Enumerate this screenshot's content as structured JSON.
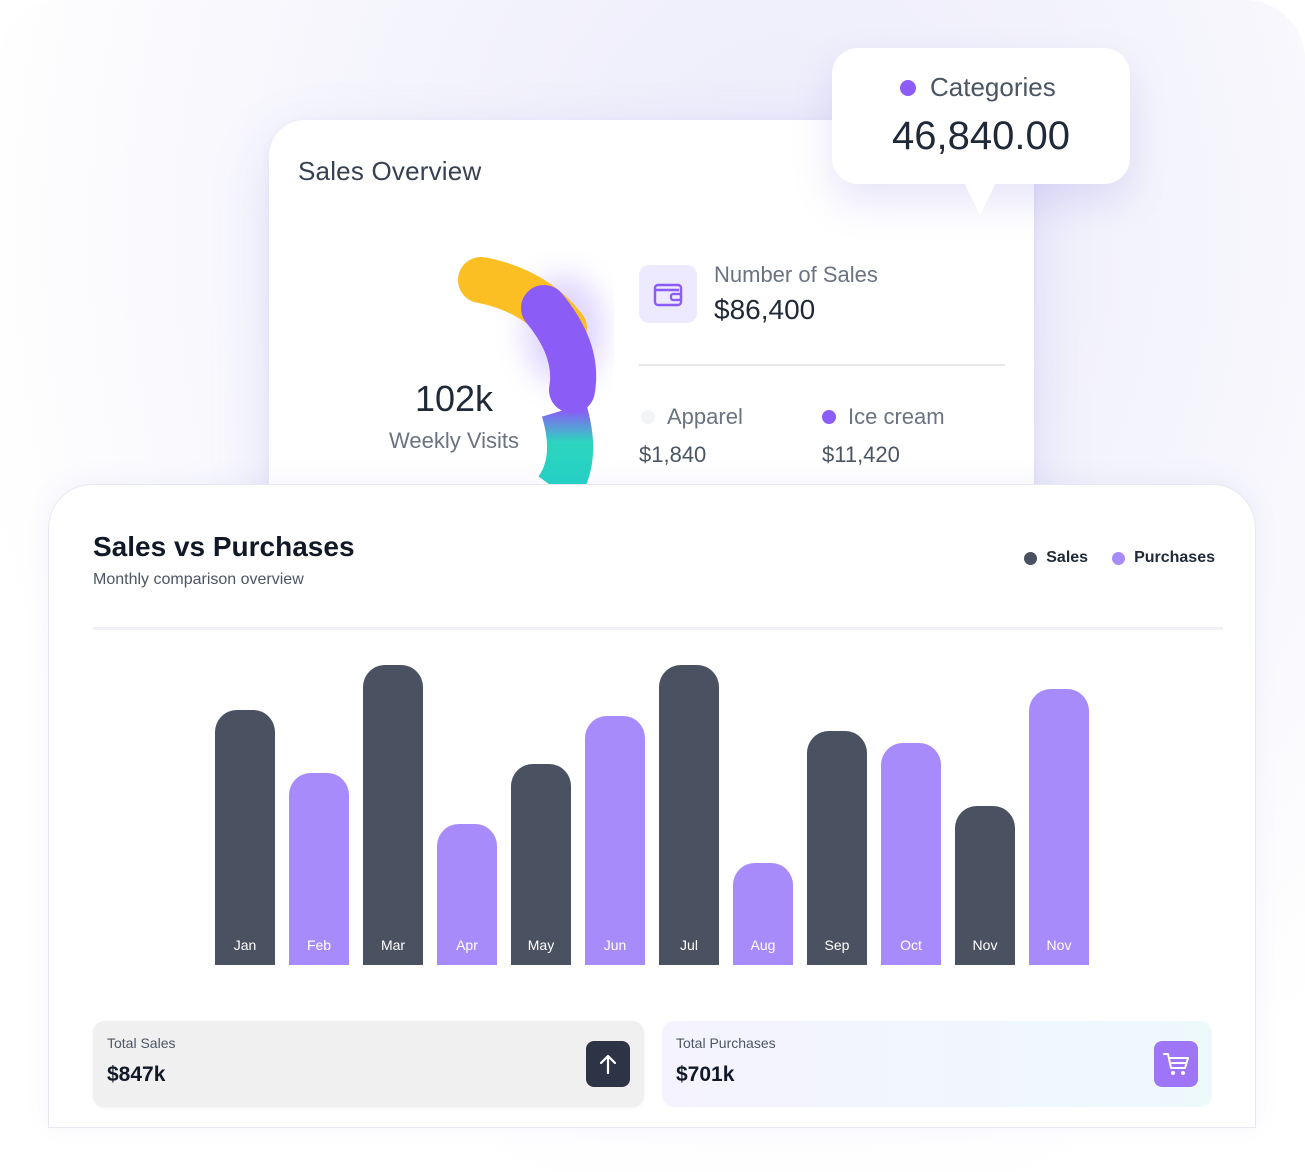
{
  "overview": {
    "title": "Sales Overview",
    "weekly_visits_value": "102k",
    "weekly_visits_label": "Weekly Visits",
    "number_of_sales_label": "Number of Sales",
    "number_of_sales_value": "$86,400",
    "categories": [
      {
        "label": "Apparel",
        "value": "$1,840",
        "color": "#f3f4f6"
      },
      {
        "label": "Ice cream",
        "value": "$11,420",
        "color": "#8b5cf6"
      }
    ],
    "donut_colors": [
      "#fbbf24",
      "#8b5cf6",
      "#2dd4bf"
    ]
  },
  "tooltip": {
    "label": "Categories",
    "value": "46,840.00",
    "dot_color": "#8b5cf6"
  },
  "svp": {
    "title": "Sales vs Purchases",
    "subtitle": "Monthly comparison overview",
    "legend": [
      {
        "label": "Sales",
        "color": "#4a5261"
      },
      {
        "label": "Purchases",
        "color": "#a78bfa"
      }
    ],
    "total_sales_label": "Total Sales",
    "total_sales_value": "$847k",
    "total_purchases_label": "Total Purchases",
    "total_purchases_value": "$701k",
    "icons": {
      "sales": "arrow-up-icon",
      "purchases": "shopping-cart-icon"
    }
  },
  "chart_data": {
    "type": "bar",
    "categories": [
      "Jan",
      "Feb",
      "Mar",
      "Apr",
      "May",
      "Jun",
      "Jul",
      "Aug",
      "Sep",
      "Oct",
      "Nov",
      "Nov"
    ],
    "values": [
      85,
      64,
      100,
      47,
      67,
      83,
      100,
      34,
      78,
      74,
      53,
      92
    ],
    "series_of_bar": [
      "Sales",
      "Purchases",
      "Sales",
      "Purchases",
      "Sales",
      "Purchases",
      "Sales",
      "Purchases",
      "Sales",
      "Purchases",
      "Sales",
      "Purchases"
    ],
    "ylim": [
      0,
      100
    ],
    "colors": {
      "Sales": "#4a5261",
      "Purchases": "#a78bfa"
    },
    "grid": false,
    "legend_position": "top-right"
  }
}
